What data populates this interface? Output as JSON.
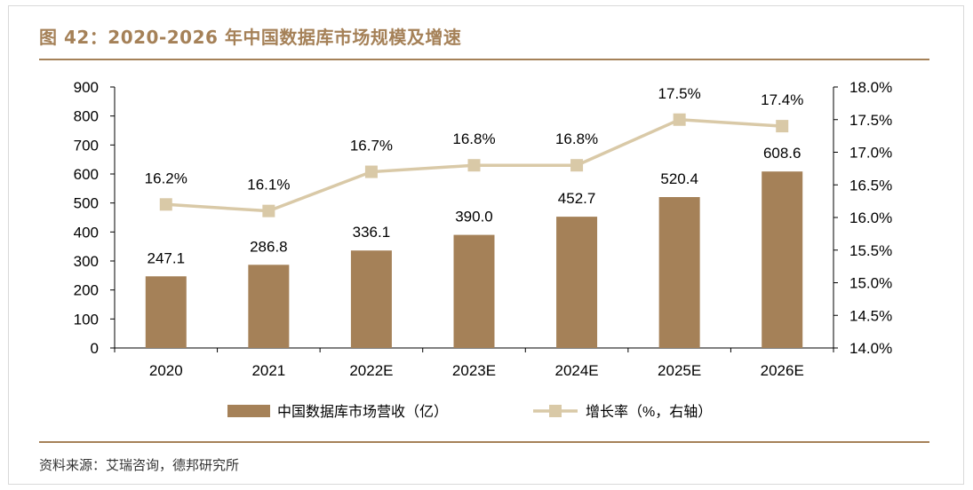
{
  "title": "图 42：2020-2026 年中国数据库市场规模及增速",
  "source": "资料来源：艾瑞咨询，德邦研究所",
  "colors": {
    "bar": "#a58158",
    "line": "#d9c9a7",
    "accent": "#a58158",
    "text": "#000000"
  },
  "chart_data": {
    "type": "bar",
    "categories": [
      "2020",
      "2021",
      "2022E",
      "2023E",
      "2024E",
      "2025E",
      "2026E"
    ],
    "series": [
      {
        "name": "中国数据库市场营收（亿）",
        "type": "bar",
        "axis": "left",
        "values": [
          247.1,
          286.8,
          336.1,
          390.0,
          452.7,
          520.4,
          608.6
        ],
        "labels": [
          "247.1",
          "286.8",
          "336.1",
          "390.0",
          "452.7",
          "520.4",
          "608.6"
        ]
      },
      {
        "name": "增长率（%，右轴）",
        "type": "line",
        "axis": "right",
        "values": [
          16.2,
          16.1,
          16.7,
          16.8,
          16.8,
          17.5,
          17.4
        ],
        "labels": [
          "16.2%",
          "16.1%",
          "16.7%",
          "16.8%",
          "16.8%",
          "17.5%",
          "17.4%"
        ]
      }
    ],
    "y_left": {
      "range": [
        0,
        900
      ],
      "ticks": [
        "0",
        "100",
        "200",
        "300",
        "400",
        "500",
        "600",
        "700",
        "800",
        "900"
      ]
    },
    "y_right": {
      "range": [
        14.0,
        18.0
      ],
      "ticks": [
        "14.0%",
        "14.5%",
        "15.0%",
        "15.5%",
        "16.0%",
        "16.5%",
        "17.0%",
        "17.5%",
        "18.0%"
      ]
    },
    "grid": false,
    "legend_position": "bottom"
  }
}
